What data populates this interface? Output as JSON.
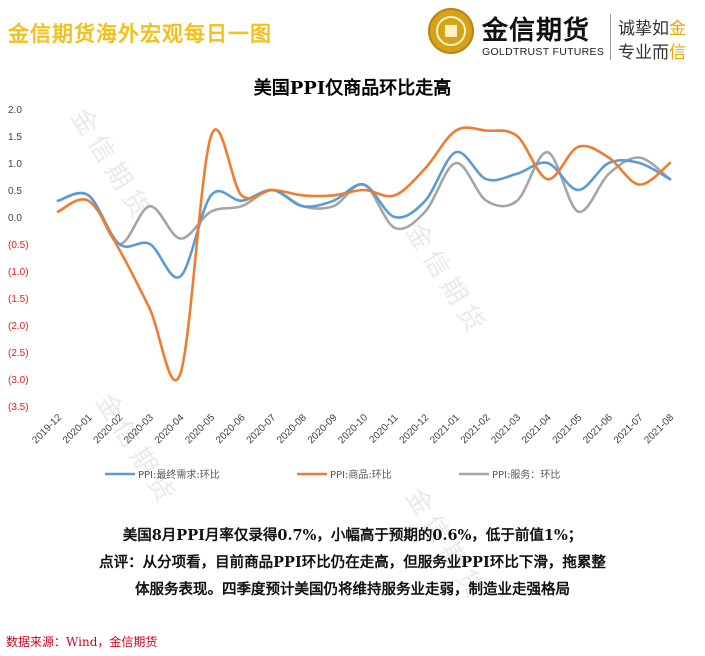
{
  "header": {
    "title": "金信期货海外宏观每日一图",
    "logo_cn": "金信期货",
    "logo_en": "GOLDTRUST FUTURES",
    "slogan_line1_a": "诚挚如",
    "slogan_line1_b": "金",
    "slogan_line2_a": "专业而",
    "slogan_line2_b": "信"
  },
  "watermark": "金信期货",
  "chart_data": {
    "type": "line",
    "title": "美国PPI仅商品环比走高",
    "categories": [
      "2019-12",
      "2020-01",
      "2020-02",
      "2020-03",
      "2020-04",
      "2020-05",
      "2020-06",
      "2020-07",
      "2020-08",
      "2020-09",
      "2020-10",
      "2020-11",
      "2020-12",
      "2021-01",
      "2021-02",
      "2021-03",
      "2021-04",
      "2021-05",
      "2021-06",
      "2021-07",
      "2021-08"
    ],
    "y_tick_labels": [
      "2.0",
      "1.5",
      "1.0",
      "0.5",
      "0.0",
      "(0.5)",
      "(1.0)",
      "(1.5)",
      "(2.0)",
      "(2.5)",
      "(3.0)",
      "(3.5)"
    ],
    "ylim": [
      -3.5,
      2.0
    ],
    "grid": false,
    "legend_position": "bottom",
    "series": [
      {
        "name": "PPI:最终需求:环比",
        "color": "#5b9bd5",
        "values": [
          0.3,
          0.4,
          -0.5,
          -0.5,
          -1.1,
          0.4,
          0.3,
          0.5,
          0.2,
          0.3,
          0.6,
          0.0,
          0.3,
          1.2,
          0.7,
          0.8,
          1.0,
          0.5,
          1.0,
          1.0,
          0.7
        ]
      },
      {
        "name": "PPI:商品:环比",
        "color": "#ed7d31",
        "values": [
          0.1,
          0.3,
          -0.6,
          -1.7,
          -2.9,
          1.5,
          0.4,
          0.5,
          0.4,
          0.4,
          0.5,
          0.4,
          0.9,
          1.6,
          1.6,
          1.5,
          0.7,
          1.3,
          1.1,
          0.6,
          1.0
        ]
      },
      {
        "name": "PPI:服务：环比",
        "color": "#a5a5a5",
        "values": [
          0.3,
          0.4,
          -0.5,
          0.2,
          -0.4,
          0.1,
          0.2,
          0.5,
          0.2,
          0.2,
          0.6,
          -0.2,
          0.1,
          1.0,
          0.3,
          0.3,
          1.2,
          0.1,
          0.8,
          1.1,
          0.7
        ]
      }
    ]
  },
  "commentary": {
    "line1": "美国8月PPI月率仅录得0.7%，小幅高于预期的0.6%，低于前值1%；",
    "line2": "点评：从分项看，目前商品PPI环比仍在走高，但服务业PPI环比下滑，拖累整",
    "line3": "体服务表现。四季度预计美国仍将维持服务业走弱，制造业走强格局"
  },
  "source": "数据来源：Wind，金信期货"
}
